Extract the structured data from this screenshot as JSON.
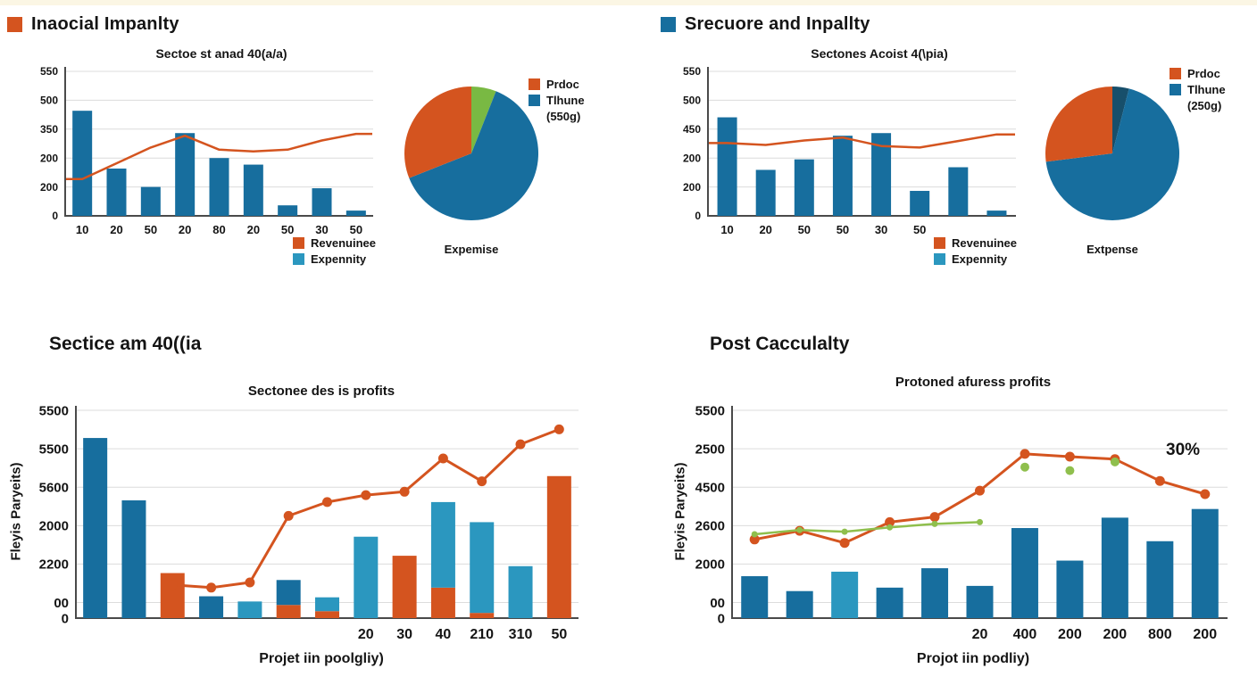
{
  "palette": {
    "orange": "#d4541f",
    "blue": "#176e9e",
    "teal": "#2b97bf",
    "green": "#79b943",
    "greenline": "#8fbf4d",
    "navy": "#174f6b",
    "grid": "#dcdcdc",
    "axis": "#4a4a4a",
    "text": "#141414"
  },
  "panels": {
    "top_left": {
      "header": "Inaocial Impanlty",
      "header_swatch": "orange"
    },
    "top_right": {
      "header": "Srecuore and Inpallty",
      "header_swatch": "blue"
    },
    "bottom_left": {
      "section_title": "Sectice am 40((ia"
    },
    "bottom_right": {
      "section_title": "Post Cacculalty"
    }
  },
  "chart_data": [
    {
      "id": "tl_combo",
      "type": "combo-bar-line",
      "title": "Sectoe st anad 40(a/a)",
      "ylim": [
        0,
        550
      ],
      "y_tick_labels": [
        "550",
        "500",
        "350",
        "200",
        "200",
        "0"
      ],
      "x_ticks": [
        {
          "label": "10",
          "bar": 0
        },
        {
          "label": "20",
          "bar": 1
        },
        {
          "label": "50",
          "bar": 2
        },
        {
          "label": "20",
          "bar": 3
        },
        {
          "label": "80",
          "bar": 4
        },
        {
          "label": "20",
          "bar": 5
        },
        {
          "label": "50",
          "bar": 6
        },
        {
          "label": "30",
          "bar": 7
        },
        {
          "label": "50",
          "bar": 8
        }
      ],
      "bars": [
        {
          "color": "blue",
          "value": 400
        },
        {
          "color": "blue",
          "value": 180
        },
        {
          "color": "blue",
          "value": 110
        },
        {
          "color": "blue",
          "value": 315
        },
        {
          "color": "blue",
          "value": 220
        },
        {
          "color": "blue",
          "value": 195
        },
        {
          "color": "blue",
          "value": 40
        },
        {
          "color": "blue",
          "value": 105
        },
        {
          "color": "blue",
          "value": 20
        }
      ],
      "series": [
        {
          "name": "Revenuinee",
          "color": "orange",
          "width": 2.5,
          "markers": false,
          "extend": true,
          "values": [
            140,
            200,
            260,
            305,
            252,
            245,
            252,
            287,
            312
          ]
        }
      ],
      "legend": [
        {
          "label": "Revenuinee",
          "color": "orange"
        },
        {
          "label": "Expennity",
          "color": "teal"
        }
      ]
    },
    {
      "id": "tl_pie",
      "type": "pie",
      "caption": "Expemise",
      "legend": [
        {
          "label": "Prdoc",
          "color": "orange"
        },
        {
          "label": "Tlhune",
          "color": "blue"
        },
        {
          "label": "(550g)"
        }
      ],
      "slices": [
        {
          "label": "",
          "color": "green",
          "value": 6
        },
        {
          "label": "Tlhune",
          "color": "blue",
          "value": 63
        },
        {
          "label": "Prdoc",
          "color": "orange",
          "value": 31
        }
      ]
    },
    {
      "id": "tr_combo",
      "type": "combo-bar-line",
      "title": "Sectones Acoist 4(\\pia)",
      "ylim": [
        0,
        550
      ],
      "y_tick_labels": [
        "550",
        "500",
        "450",
        "200",
        "200",
        "0"
      ],
      "x_ticks": [
        {
          "label": "10",
          "bar": 0
        },
        {
          "label": "20",
          "bar": 1
        },
        {
          "label": "50",
          "bar": 2
        },
        {
          "label": "50",
          "bar": 3
        },
        {
          "label": "30",
          "bar": 4
        },
        {
          "label": "50",
          "bar": 5
        }
      ],
      "bars": [
        {
          "color": "blue",
          "value": 375
        },
        {
          "color": "blue",
          "value": 175
        },
        {
          "color": "blue",
          "value": 215
        },
        {
          "color": "blue",
          "value": 305
        },
        {
          "color": "blue",
          "value": 315
        },
        {
          "color": "blue",
          "value": 95
        },
        {
          "color": "blue",
          "value": 185
        },
        {
          "color": "blue",
          "value": 20
        }
      ],
      "series": [
        {
          "name": "Revenuinee",
          "color": "orange",
          "width": 2.5,
          "markers": false,
          "extend": true,
          "values": [
            277,
            270,
            287,
            298,
            266,
            260,
            285,
            310
          ]
        }
      ],
      "legend": [
        {
          "label": "Revenuinee",
          "color": "orange"
        },
        {
          "label": "Expennity",
          "color": "teal"
        }
      ]
    },
    {
      "id": "tr_pie",
      "type": "pie",
      "caption": "Extpense",
      "legend": [
        {
          "label": "Prdoc",
          "color": "orange"
        },
        {
          "label": "Tlhune",
          "color": "blue"
        },
        {
          "label": "(250g)"
        }
      ],
      "slices": [
        {
          "label": "",
          "color": "navy",
          "value": 4
        },
        {
          "label": "Tlhune",
          "color": "blue",
          "value": 69
        },
        {
          "label": "Prdoc",
          "color": "orange",
          "value": 27
        }
      ]
    },
    {
      "id": "bl_combo",
      "type": "combo-bar-line",
      "title": "Sectonee des is profits",
      "xlabel": "Projet iin poolgliy)",
      "ylabel": "Fleyis Paryeits)",
      "ylim": [
        0,
        6000
      ],
      "y_tick_labels": [
        "5500",
        "5500",
        "5600",
        "2000",
        "2200",
        "00",
        "0"
      ],
      "x_ticks": [
        {
          "label": "20",
          "bar": 7
        },
        {
          "label": "30",
          "bar": 8
        },
        {
          "label": "40",
          "bar": 9
        },
        {
          "label": "210",
          "bar": 10
        },
        {
          "label": "310",
          "bar": 11
        },
        {
          "label": "50",
          "bar": 12
        }
      ],
      "bars": [
        {
          "color": "blue",
          "value": 5200
        },
        {
          "color": "blue",
          "value": 3400
        },
        {
          "color": "orange",
          "value": 1300
        },
        {
          "color": "blue",
          "value": 630
        },
        {
          "color": "teal",
          "value": 480
        },
        {
          "stack": [
            {
              "color": "orange",
              "value": 380
            },
            {
              "color": "blue",
              "value": 720
            }
          ]
        },
        {
          "stack": [
            {
              "color": "orange",
              "value": 200
            },
            {
              "color": "teal",
              "value": 400
            }
          ]
        },
        {
          "color": "teal",
          "value": 2350
        },
        {
          "color": "orange",
          "value": 1800
        },
        {
          "stack": [
            {
              "color": "orange",
              "value": 880
            },
            {
              "color": "teal",
              "value": 2470
            }
          ]
        },
        {
          "stack": [
            {
              "color": "orange",
              "value": 150
            },
            {
              "color": "teal",
              "value": 2620
            }
          ]
        },
        {
          "color": "teal",
          "value": 1500
        },
        {
          "color": "orange",
          "value": 4100
        }
      ],
      "series": [
        {
          "name": "trend-line",
          "color": "orange",
          "width": 3,
          "markers": true,
          "r": 5.5,
          "values": [
            null,
            null,
            960,
            880,
            1030,
            2950,
            3350,
            3550,
            3650,
            4610,
            3950,
            5020,
            5450
          ]
        }
      ]
    },
    {
      "id": "br_combo",
      "type": "combo-bar-line",
      "title": "Protoned afuress profits",
      "xlabel": "Projot iin podliy)",
      "ylabel": "Fleyis Paryeits)",
      "annotation": "30%",
      "ylim": [
        0,
        6000
      ],
      "y_tick_labels": [
        "5500",
        "2500",
        "4500",
        "2600",
        "2000",
        "00",
        "0"
      ],
      "x_ticks": [
        {
          "label": "20",
          "bar": 5
        },
        {
          "label": "400",
          "bar": 6
        },
        {
          "label": "200",
          "bar": 7
        },
        {
          "label": "200",
          "bar": 8
        },
        {
          "label": "800",
          "bar": 9
        },
        {
          "label": "200",
          "bar": 10
        }
      ],
      "bars": [
        {
          "color": "blue",
          "value": 1210
        },
        {
          "color": "blue",
          "value": 780
        },
        {
          "color": "teal",
          "value": 1340
        },
        {
          "color": "blue",
          "value": 880
        },
        {
          "color": "blue",
          "value": 1440
        },
        {
          "color": "blue",
          "value": 930
        },
        {
          "color": "blue",
          "value": 2600
        },
        {
          "color": "blue",
          "value": 1660
        },
        {
          "color": "blue",
          "value": 2900
        },
        {
          "color": "blue",
          "value": 2220
        },
        {
          "color": "blue",
          "value": 3150
        }
      ],
      "series": [
        {
          "name": "profit-line",
          "color": "orange",
          "width": 3,
          "markers": true,
          "r": 5.5,
          "values": [
            2270,
            2520,
            2170,
            2770,
            2920,
            3680,
            4740,
            4660,
            4590,
            3960,
            3580
          ]
        },
        {
          "name": "target-line",
          "color": "greenline",
          "width": 2.5,
          "markers": true,
          "r": 3.5,
          "values": [
            2420,
            2545,
            2495,
            2620,
            2720,
            2770,
            null,
            null,
            null,
            null,
            null
          ]
        },
        {
          "name": "target-points",
          "color": "greenline",
          "line": false,
          "markers": true,
          "r": 5,
          "values": [
            null,
            null,
            null,
            null,
            null,
            null,
            4360,
            4260,
            4510,
            null,
            null
          ]
        }
      ]
    }
  ]
}
